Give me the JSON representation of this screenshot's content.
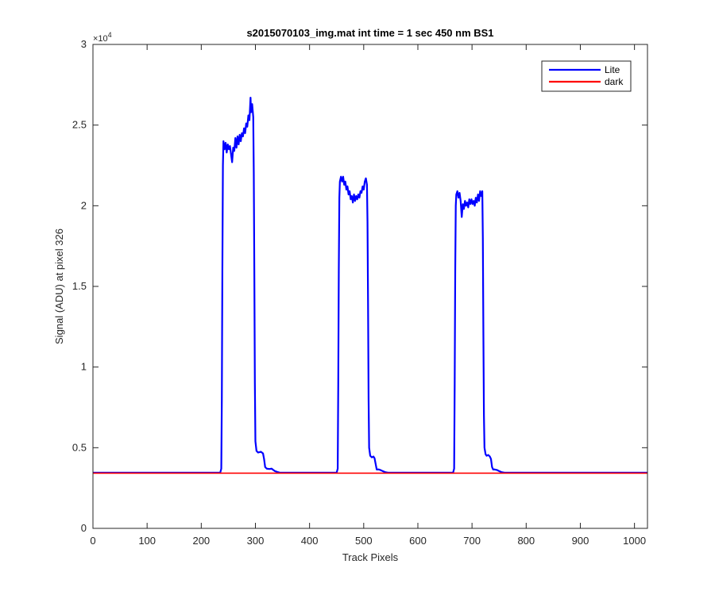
{
  "chart_data": {
    "type": "line",
    "title": "s2015070103_img.mat int time = 1 sec  450 nm BS1",
    "xlabel": "Track Pixels",
    "ylabel": "Signal (ADU) at pixel 326",
    "xlim": [
      0,
      1024
    ],
    "ylim": [
      0,
      30000
    ],
    "x_ticks": [
      0,
      100,
      200,
      300,
      400,
      500,
      600,
      700,
      800,
      900,
      1000
    ],
    "y_ticks": [
      0,
      5000,
      10000,
      15000,
      20000,
      25000,
      30000
    ],
    "y_tick_labels": [
      "0",
      "0.5",
      "1",
      "1.5",
      "2",
      "2.5",
      "3"
    ],
    "y_exponent": "×10",
    "y_exponent_power": "4",
    "legend_position": "top-right",
    "grid": false,
    "series": [
      {
        "name": "Lite",
        "color": "#0000ff",
        "points": [
          [
            0,
            3450
          ],
          [
            235,
            3450
          ],
          [
            237,
            3700
          ],
          [
            238,
            8000
          ],
          [
            239,
            16000
          ],
          [
            240,
            22500
          ],
          [
            241,
            24000
          ],
          [
            243,
            23500
          ],
          [
            245,
            23900
          ],
          [
            247,
            23300
          ],
          [
            249,
            23800
          ],
          [
            251,
            23500
          ],
          [
            253,
            23700
          ],
          [
            255,
            23200
          ],
          [
            257,
            22700
          ],
          [
            259,
            23600
          ],
          [
            261,
            23400
          ],
          [
            263,
            24200
          ],
          [
            265,
            23600
          ],
          [
            267,
            24300
          ],
          [
            269,
            23800
          ],
          [
            271,
            24400
          ],
          [
            273,
            24000
          ],
          [
            275,
            24500
          ],
          [
            277,
            24300
          ],
          [
            279,
            24800
          ],
          [
            281,
            24500
          ],
          [
            283,
            25100
          ],
          [
            285,
            24900
          ],
          [
            287,
            25600
          ],
          [
            289,
            25300
          ],
          [
            291,
            26700
          ],
          [
            292,
            25800
          ],
          [
            294,
            26300
          ],
          [
            296,
            25500
          ],
          [
            297,
            22000
          ],
          [
            298,
            16000
          ],
          [
            299,
            9000
          ],
          [
            300,
            5400
          ],
          [
            302,
            4800
          ],
          [
            305,
            4700
          ],
          [
            310,
            4750
          ],
          [
            314,
            4650
          ],
          [
            316,
            4300
          ],
          [
            318,
            3800
          ],
          [
            321,
            3700
          ],
          [
            326,
            3680
          ],
          [
            330,
            3700
          ],
          [
            333,
            3620
          ],
          [
            336,
            3550
          ],
          [
            340,
            3500
          ],
          [
            345,
            3450
          ],
          [
            450,
            3450
          ],
          [
            452,
            3700
          ],
          [
            453,
            9000
          ],
          [
            454,
            16000
          ],
          [
            455,
            20500
          ],
          [
            456,
            21500
          ],
          [
            458,
            21800
          ],
          [
            460,
            21500
          ],
          [
            462,
            21800
          ],
          [
            464,
            21300
          ],
          [
            466,
            21500
          ],
          [
            468,
            21000
          ],
          [
            470,
            21200
          ],
          [
            472,
            20700
          ],
          [
            474,
            20900
          ],
          [
            476,
            20400
          ],
          [
            478,
            20600
          ],
          [
            480,
            20200
          ],
          [
            482,
            20700
          ],
          [
            484,
            20300
          ],
          [
            486,
            20600
          ],
          [
            488,
            20400
          ],
          [
            490,
            20700
          ],
          [
            492,
            20500
          ],
          [
            494,
            20900
          ],
          [
            496,
            20800
          ],
          [
            498,
            21200
          ],
          [
            500,
            21000
          ],
          [
            502,
            21500
          ],
          [
            504,
            21700
          ],
          [
            506,
            21300
          ],
          [
            507,
            19000
          ],
          [
            508,
            14000
          ],
          [
            509,
            8000
          ],
          [
            510,
            5000
          ],
          [
            512,
            4500
          ],
          [
            515,
            4400
          ],
          [
            518,
            4450
          ],
          [
            520,
            4350
          ],
          [
            522,
            4000
          ],
          [
            524,
            3650
          ],
          [
            528,
            3650
          ],
          [
            532,
            3600
          ],
          [
            535,
            3550
          ],
          [
            540,
            3480
          ],
          [
            545,
            3450
          ],
          [
            665,
            3450
          ],
          [
            667,
            3700
          ],
          [
            668,
            9000
          ],
          [
            669,
            16000
          ],
          [
            670,
            20000
          ],
          [
            671,
            20700
          ],
          [
            673,
            20900
          ],
          [
            675,
            20500
          ],
          [
            677,
            20800
          ],
          [
            679,
            20300
          ],
          [
            681,
            19300
          ],
          [
            683,
            20100
          ],
          [
            685,
            19800
          ],
          [
            687,
            20300
          ],
          [
            689,
            20000
          ],
          [
            691,
            20200
          ],
          [
            693,
            19900
          ],
          [
            695,
            20400
          ],
          [
            697,
            20100
          ],
          [
            699,
            20400
          ],
          [
            701,
            20100
          ],
          [
            703,
            20300
          ],
          [
            705,
            20000
          ],
          [
            707,
            20500
          ],
          [
            709,
            20200
          ],
          [
            711,
            20700
          ],
          [
            713,
            20300
          ],
          [
            715,
            20900
          ],
          [
            717,
            20600
          ],
          [
            719,
            20900
          ],
          [
            720,
            18000
          ],
          [
            721,
            12000
          ],
          [
            722,
            7000
          ],
          [
            723,
            5000
          ],
          [
            725,
            4600
          ],
          [
            727,
            4500
          ],
          [
            730,
            4550
          ],
          [
            733,
            4450
          ],
          [
            735,
            4300
          ],
          [
            737,
            3800
          ],
          [
            739,
            3650
          ],
          [
            742,
            3650
          ],
          [
            746,
            3620
          ],
          [
            750,
            3550
          ],
          [
            755,
            3480
          ],
          [
            760,
            3450
          ],
          [
            1024,
            3450
          ]
        ]
      },
      {
        "name": "dark",
        "color": "#ff0000",
        "points": [
          [
            0,
            3420
          ],
          [
            1024,
            3420
          ]
        ]
      }
    ]
  }
}
